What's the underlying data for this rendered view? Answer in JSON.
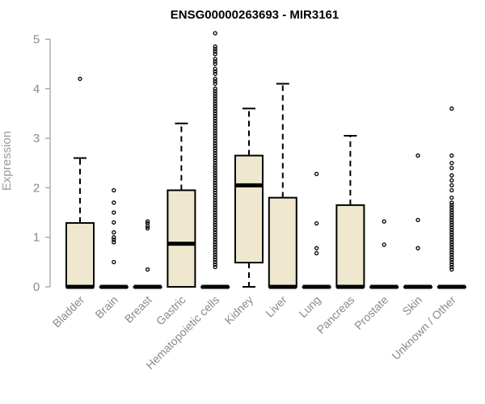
{
  "chart_data": {
    "type": "boxplot",
    "title": "ENSG00000263693 - MIR3161",
    "xlabel": "",
    "ylabel": "Expression",
    "ylim": [
      0,
      5.15
    ],
    "yticks": [
      "0",
      "1",
      "2",
      "3",
      "4",
      "5"
    ],
    "grid": false,
    "box_fill": "#efe8cf",
    "categories": [
      "Bladder",
      "Brain",
      "Breast",
      "Gastric",
      "Hematopoietic cells",
      "Kidney",
      "Liver",
      "Lung",
      "Pancreas",
      "Prostate",
      "Skin",
      "Unknown / Other"
    ],
    "boxes": [
      {
        "q1": 0,
        "median": 0,
        "q3": 1.29,
        "whisker_low": 0,
        "whisker_high": 2.6,
        "outliers": [
          4.2
        ]
      },
      {
        "q1": 0,
        "median": 0,
        "q3": 0,
        "whisker_low": 0,
        "whisker_high": 0,
        "outliers": [
          0.5,
          0.9,
          0.95,
          1.0,
          1.1,
          1.3,
          1.5,
          1.7,
          1.95
        ]
      },
      {
        "q1": 0,
        "median": 0,
        "q3": 0,
        "whisker_low": 0,
        "whisker_high": 0,
        "outliers": [
          0.35,
          1.18,
          1.22,
          1.28,
          1.32
        ]
      },
      {
        "q1": 0,
        "median": 0.87,
        "q3": 1.95,
        "whisker_low": 0,
        "whisker_high": 3.3,
        "outliers": []
      },
      {
        "q1": 0,
        "median": 0,
        "q3": 0,
        "whisker_low": 0,
        "whisker_high": 0,
        "outliers": [
          5.12,
          4.85,
          4.8,
          4.75,
          4.7,
          4.6,
          4.55,
          4.5,
          4.4,
          4.35,
          4.3,
          4.2,
          4.15,
          4.1,
          4.0,
          3.95,
          3.9,
          3.85,
          3.8,
          3.75,
          3.7,
          3.65,
          3.6,
          3.55,
          3.5,
          3.45,
          3.4,
          3.35,
          3.3,
          3.25,
          3.2,
          3.15,
          3.1,
          3.05,
          3.0,
          2.95,
          2.9,
          2.85,
          2.8,
          2.75,
          2.7,
          2.65,
          2.6,
          2.55,
          2.5,
          2.45,
          2.4,
          2.35,
          2.3,
          2.25,
          2.2,
          2.15,
          2.1,
          2.05,
          2.0,
          1.95,
          1.9,
          1.85,
          1.8,
          1.75,
          1.7,
          1.65,
          1.6,
          1.55,
          1.5,
          1.45,
          1.4,
          1.35,
          1.3,
          1.25,
          1.2,
          1.15,
          1.1,
          1.05,
          1.0,
          0.95,
          0.9,
          0.85,
          0.8,
          0.75,
          0.7,
          0.65,
          0.6,
          0.55,
          0.5,
          0.45,
          0.4
        ]
      },
      {
        "q1": 0.49,
        "median": 2.05,
        "q3": 2.65,
        "whisker_low": 0,
        "whisker_high": 3.6,
        "outliers": []
      },
      {
        "q1": 0,
        "median": 0,
        "q3": 1.8,
        "whisker_low": 0,
        "whisker_high": 4.1,
        "outliers": []
      },
      {
        "q1": 0,
        "median": 0,
        "q3": 0,
        "whisker_low": 0,
        "whisker_high": 0,
        "outliers": [
          0.68,
          0.78,
          1.28,
          2.28
        ]
      },
      {
        "q1": 0,
        "median": 0,
        "q3": 1.65,
        "whisker_low": 0,
        "whisker_high": 3.05,
        "outliers": []
      },
      {
        "q1": 0,
        "median": 0,
        "q3": 0,
        "whisker_low": 0,
        "whisker_high": 0,
        "outliers": [
          0.85,
          1.32
        ]
      },
      {
        "q1": 0,
        "median": 0,
        "q3": 0,
        "whisker_low": 0,
        "whisker_high": 0,
        "outliers": [
          0.78,
          1.35,
          2.65
        ]
      },
      {
        "q1": 0,
        "median": 0,
        "q3": 0,
        "whisker_low": 0,
        "whisker_high": 0,
        "outliers": [
          3.6,
          2.65,
          2.5,
          2.4,
          2.25,
          2.15,
          2.05,
          1.95,
          1.8,
          1.7,
          1.65,
          1.6,
          1.55,
          1.5,
          1.45,
          1.4,
          1.35,
          1.3,
          1.25,
          1.2,
          1.15,
          1.1,
          1.05,
          1.0,
          0.95,
          0.9,
          0.85,
          0.8,
          0.75,
          0.7,
          0.65,
          0.6,
          0.55,
          0.5,
          0.45,
          0.4,
          0.35
        ]
      }
    ]
  }
}
